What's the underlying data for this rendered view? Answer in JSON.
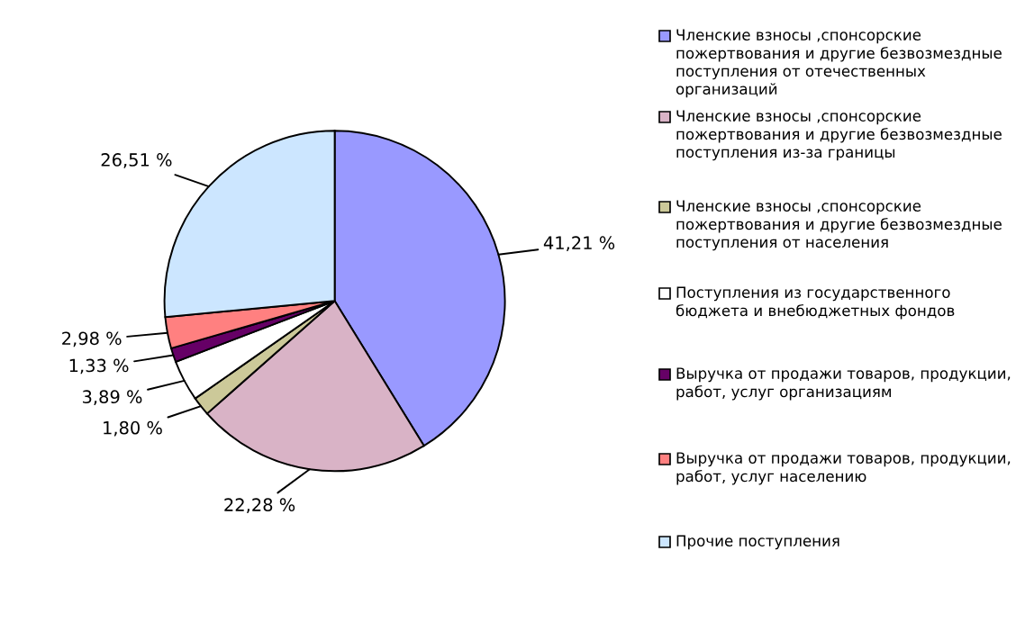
{
  "chart_data": {
    "type": "pie",
    "categories": [
      "Членские взносы ,спонсорские пожертвования и другие безвозмездные поступления от отечественных организаций",
      "Членские взносы ,спонсорские пожертвования и другие безвозмездные поступления из-за границы",
      "Членские взносы ,спонсорские пожертвования и другие безвозмездные поступления от населения",
      "Поступления из государственного бюджета и внебюджетных фондов",
      "Выручка от продажи товаров, продукции, работ, услуг организациям",
      "Выручка от продажи товаров, продукции, работ, услуг населению",
      "Прочие поступления"
    ],
    "values": [
      41.21,
      22.28,
      1.8,
      3.89,
      1.33,
      2.98,
      26.51
    ],
    "value_labels": [
      "41,21 %",
      "22,28 %",
      "1,80 %",
      "3,89 %",
      "1,33 %",
      "2,98 %",
      "26,51 %"
    ],
    "colors": [
      "#9999ff",
      "#d9b3c6",
      "#ccc999",
      "#ffffff",
      "#660066",
      "#ff8080",
      "#cce6ff"
    ],
    "legend": "right"
  }
}
